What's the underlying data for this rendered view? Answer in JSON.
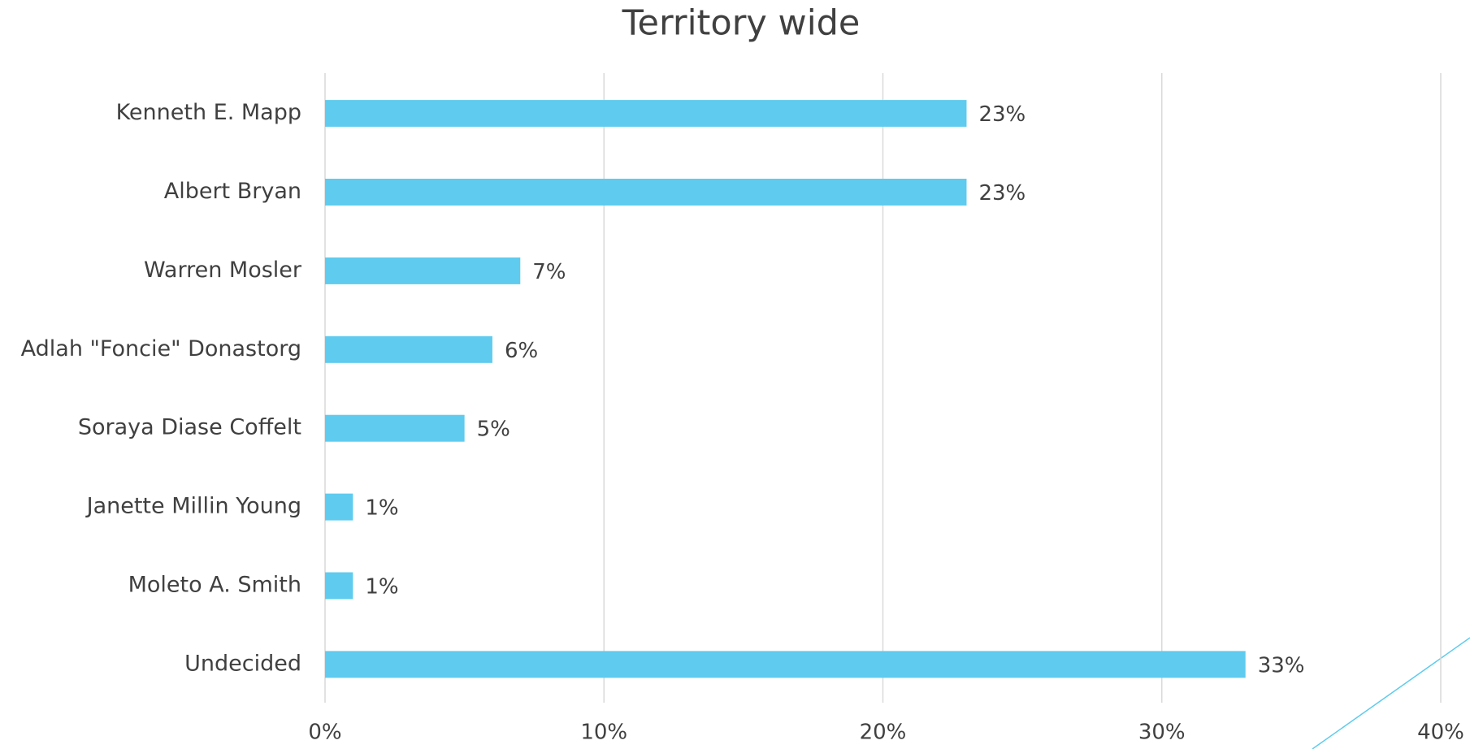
{
  "chart_data": {
    "type": "bar",
    "orientation": "horizontal",
    "title": "Territory wide",
    "categories": [
      "Kenneth E. Mapp",
      "Albert Bryan",
      "Warren Mosler",
      "Adlah \"Foncie\" Donastorg",
      "Soraya Diase Coffelt",
      "Janette Millin Young",
      "Moleto A. Smith",
      "Undecided"
    ],
    "values": [
      23,
      23,
      7,
      6,
      5,
      1,
      1,
      33
    ],
    "value_labels": [
      "23%",
      "23%",
      "7%",
      "6%",
      "5%",
      "1%",
      "1%",
      "33%"
    ],
    "color": "#5ecbef",
    "xlim": [
      0,
      40
    ],
    "xticks": [
      {
        "value": 0,
        "label": "0%"
      },
      {
        "value": 10,
        "label": "10%"
      },
      {
        "value": 20,
        "label": "20%"
      },
      {
        "value": 30,
        "label": "30%"
      },
      {
        "value": 40,
        "label": "40%"
      }
    ],
    "grid": true
  }
}
